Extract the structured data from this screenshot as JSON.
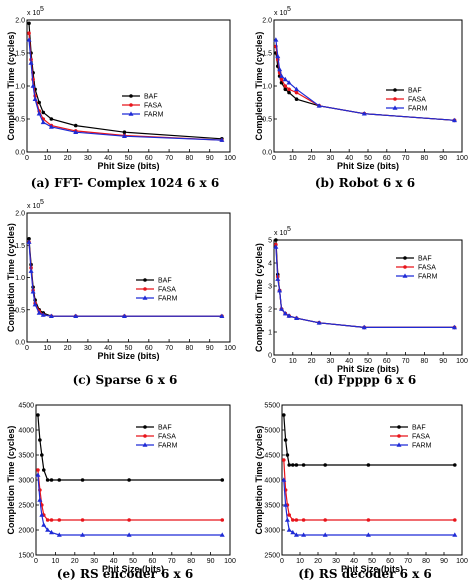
{
  "colors": {
    "BAF": "#000000",
    "FASA": "#e8141b",
    "FARM": "#1f2bd6"
  },
  "markers": {
    "BAF": "circle",
    "FASA": "circle",
    "FARM": "triangle"
  },
  "chart_data": [
    {
      "id": "fft",
      "type": "line",
      "caption": "(a) FFT- Complex 1024 6 x 6",
      "xlabel": "Phit Size (bits)",
      "ylabel": "Completion Time (cycles)",
      "exponent_label": "x 10",
      "exponent_power": "5",
      "xlim": [
        0,
        100
      ],
      "ylim": [
        0,
        200000
      ],
      "xticks": [
        0,
        10,
        20,
        30,
        40,
        50,
        60,
        70,
        80,
        90,
        100
      ],
      "xtick_labels": [
        "0",
        "10",
        "20",
        "30",
        "40",
        "50",
        "60",
        "70",
        "80",
        "90",
        "100"
      ],
      "yticks": [
        0,
        50000,
        100000,
        150000,
        200000
      ],
      "ytick_labels": [
        "0.0",
        "0.5",
        "1.0",
        "1.5",
        "2.0"
      ],
      "legend_position": "center",
      "series": [
        {
          "name": "BAF",
          "x": [
            1,
            2,
            3,
            4,
            6,
            8,
            12,
            24,
            48,
            96
          ],
          "y": [
            195000,
            150000,
            120000,
            95000,
            75000,
            60000,
            50000,
            40000,
            30000,
            20000
          ]
        },
        {
          "name": "FASA",
          "x": [
            1,
            2,
            3,
            4,
            6,
            8,
            12,
            24,
            48,
            96
          ],
          "y": [
            180000,
            140000,
            110000,
            85000,
            62000,
            50000,
            40000,
            32000,
            25000,
            18000
          ]
        },
        {
          "name": "FARM",
          "x": [
            1,
            2,
            3,
            4,
            6,
            8,
            12,
            24,
            48,
            96
          ],
          "y": [
            170000,
            135000,
            100000,
            80000,
            58000,
            45000,
            38000,
            30000,
            24000,
            18000
          ]
        }
      ]
    },
    {
      "id": "robot",
      "type": "line",
      "caption": "(b) Robot 6 x 6",
      "xlabel": "Phit Size (bits)",
      "ylabel": "Completion Time (cycles)",
      "exponent_label": "x 10",
      "exponent_power": "5",
      "xlim": [
        0,
        100
      ],
      "ylim": [
        0,
        200000
      ],
      "xticks": [
        0,
        10,
        20,
        30,
        40,
        50,
        60,
        70,
        80,
        90,
        100
      ],
      "xtick_labels": [
        "0",
        "10",
        "20",
        "30",
        "40",
        "50",
        "60",
        "70",
        "80",
        "90",
        "100"
      ],
      "yticks": [
        0,
        50000,
        100000,
        150000,
        200000
      ],
      "ytick_labels": [
        "0.0",
        "0.5",
        "1.0",
        "1.5",
        "2.0"
      ],
      "legend_position": "right",
      "series": [
        {
          "name": "BAF",
          "x": [
            1,
            2,
            3,
            4,
            6,
            8,
            12,
            24,
            48,
            96
          ],
          "y": [
            150000,
            130000,
            115000,
            105000,
            95000,
            90000,
            80000,
            70000,
            58000,
            48000
          ]
        },
        {
          "name": "FASA",
          "x": [
            1,
            2,
            3,
            4,
            6,
            8,
            12,
            24,
            48,
            96
          ],
          "y": [
            160000,
            140000,
            120000,
            110000,
            100000,
            95000,
            90000,
            70000,
            58000,
            48000
          ]
        },
        {
          "name": "FARM",
          "x": [
            1,
            2,
            3,
            4,
            6,
            8,
            12,
            24,
            48,
            96
          ],
          "y": [
            170000,
            145000,
            125000,
            115000,
            110000,
            105000,
            95000,
            70000,
            58000,
            48000
          ]
        }
      ]
    },
    {
      "id": "sparse",
      "type": "line",
      "caption": "(c) Sparse 6 x 6",
      "xlabel": "Phit Size (bits)",
      "ylabel": "Completion Time (cycles)",
      "exponent_label": "x 10",
      "exponent_power": "5",
      "xlim": [
        0,
        100
      ],
      "ylim": [
        0,
        200000
      ],
      "xticks": [
        0,
        10,
        20,
        30,
        40,
        50,
        60,
        70,
        80,
        90,
        100
      ],
      "xtick_labels": [
        "0",
        "10",
        "20",
        "30",
        "40",
        "50",
        "60",
        "70",
        "80",
        "90",
        "100"
      ],
      "yticks": [
        0,
        50000,
        100000,
        150000,
        200000
      ],
      "ytick_labels": [
        "0.0",
        "0.5",
        "1.0",
        "1.5",
        "2.0"
      ],
      "legend_position": "right",
      "series": [
        {
          "name": "BAF",
          "x": [
            1,
            2,
            3,
            4,
            6,
            8,
            12,
            24,
            48,
            96
          ],
          "y": [
            160000,
            120000,
            85000,
            65000,
            50000,
            45000,
            40000,
            40000,
            40000,
            40000
          ]
        },
        {
          "name": "FASA",
          "x": [
            1,
            2,
            3,
            4,
            6,
            8,
            12,
            24,
            48,
            96
          ],
          "y": [
            155000,
            115000,
            80000,
            60000,
            48000,
            42000,
            40000,
            40000,
            40000,
            40000
          ]
        },
        {
          "name": "FARM",
          "x": [
            1,
            2,
            3,
            4,
            6,
            8,
            12,
            24,
            48,
            96
          ],
          "y": [
            155000,
            110000,
            78000,
            58000,
            45000,
            42000,
            40000,
            40000,
            40000,
            40000
          ]
        }
      ]
    },
    {
      "id": "fpppp",
      "type": "line",
      "caption": "(d) Fpppp 6 x 6",
      "xlabel": "Phit Size (bits)",
      "ylabel": "Completion Time (cycles)",
      "exponent_label": "x 10",
      "exponent_power": "5",
      "xlim": [
        0,
        100
      ],
      "ylim": [
        0,
        500000
      ],
      "xticks": [
        0,
        10,
        20,
        30,
        40,
        50,
        60,
        70,
        80,
        90,
        100
      ],
      "xtick_labels": [
        "0",
        "10",
        "20",
        "30",
        "40",
        "50",
        "60",
        "70",
        "80",
        "90",
        "100"
      ],
      "yticks": [
        0,
        100000,
        200000,
        300000,
        400000,
        500000
      ],
      "ytick_labels": [
        "0",
        "1",
        "2",
        "3",
        "4",
        "5"
      ],
      "legend_position": "right",
      "series": [
        {
          "name": "BAF",
          "x": [
            1,
            2,
            3,
            4,
            6,
            8,
            12,
            24,
            48,
            96
          ],
          "y": [
            500000,
            350000,
            280000,
            200000,
            180000,
            170000,
            160000,
            140000,
            120000,
            120000
          ]
        },
        {
          "name": "FASA",
          "x": [
            1,
            2,
            3,
            4,
            6,
            8,
            12,
            24,
            48,
            96
          ],
          "y": [
            480000,
            340000,
            280000,
            200000,
            180000,
            170000,
            160000,
            140000,
            120000,
            120000
          ]
        },
        {
          "name": "FARM",
          "x": [
            1,
            2,
            3,
            4,
            6,
            8,
            12,
            24,
            48,
            96
          ],
          "y": [
            470000,
            330000,
            280000,
            200000,
            180000,
            170000,
            160000,
            140000,
            120000,
            120000
          ]
        }
      ]
    },
    {
      "id": "rsenc",
      "type": "line",
      "caption": "(e) RS encoder 6 x 6",
      "xlabel": "Phit Size (bits)",
      "ylabel": "Completion Time (cycles)",
      "exponent_label": "",
      "exponent_power": "",
      "xlim": [
        0,
        100
      ],
      "ylim": [
        1500,
        4500
      ],
      "xticks": [
        0,
        10,
        20,
        30,
        40,
        50,
        60,
        70,
        80,
        90,
        100
      ],
      "xtick_labels": [
        "0",
        "10",
        "20",
        "30",
        "40",
        "50",
        "60",
        "70",
        "80",
        "90",
        "100"
      ],
      "yticks": [
        1500,
        2000,
        2500,
        3000,
        3500,
        4000,
        4500
      ],
      "ytick_labels": [
        "1500",
        "2000",
        "2500",
        "3000",
        "3500",
        "4000",
        "4500"
      ],
      "legend_position": "right",
      "series": [
        {
          "name": "BAF",
          "x": [
            1,
            2,
            3,
            4,
            6,
            8,
            12,
            24,
            48,
            96
          ],
          "y": [
            4300,
            3800,
            3500,
            3200,
            3000,
            3000,
            3000,
            3000,
            3000,
            3000
          ]
        },
        {
          "name": "FASA",
          "x": [
            1,
            2,
            3,
            4,
            6,
            8,
            12,
            24,
            48,
            96
          ],
          "y": [
            3200,
            2800,
            2500,
            2300,
            2200,
            2200,
            2200,
            2200,
            2200,
            2200
          ]
        },
        {
          "name": "FARM",
          "x": [
            1,
            2,
            3,
            4,
            6,
            8,
            12,
            24,
            48,
            96
          ],
          "y": [
            3100,
            2600,
            2300,
            2100,
            2000,
            1950,
            1900,
            1900,
            1900,
            1900
          ]
        }
      ]
    },
    {
      "id": "rsdec",
      "type": "line",
      "caption": "(f) RS decoder 6 x 6",
      "xlabel": "Phit Size (bits)",
      "ylabel": "Completion Time (cycles)",
      "exponent_label": "",
      "exponent_power": "",
      "xlim": [
        0,
        100
      ],
      "ylim": [
        2500,
        5500
      ],
      "xticks": [
        0,
        10,
        20,
        30,
        40,
        50,
        60,
        70,
        80,
        90,
        100
      ],
      "xtick_labels": [
        "0",
        "10",
        "20",
        "30",
        "40",
        "50",
        "60",
        "70",
        "80",
        "90",
        "100"
      ],
      "yticks": [
        2500,
        3000,
        3500,
        4000,
        4500,
        5000,
        5500
      ],
      "ytick_labels": [
        "2500",
        "3000",
        "3500",
        "4000",
        "4500",
        "5000",
        "5500"
      ],
      "legend_position": "right",
      "series": [
        {
          "name": "BAF",
          "x": [
            1,
            2,
            3,
            4,
            6,
            8,
            12,
            24,
            48,
            96
          ],
          "y": [
            5300,
            4800,
            4500,
            4300,
            4300,
            4300,
            4300,
            4300,
            4300,
            4300
          ]
        },
        {
          "name": "FASA",
          "x": [
            1,
            2,
            3,
            4,
            6,
            8,
            12,
            24,
            48,
            96
          ],
          "y": [
            4400,
            3800,
            3500,
            3300,
            3200,
            3200,
            3200,
            3200,
            3200,
            3200
          ]
        },
        {
          "name": "FARM",
          "x": [
            1,
            2,
            3,
            4,
            6,
            8,
            12,
            24,
            48,
            96
          ],
          "y": [
            4000,
            3500,
            3200,
            3000,
            2950,
            2900,
            2900,
            2900,
            2900,
            2900
          ]
        }
      ]
    }
  ]
}
